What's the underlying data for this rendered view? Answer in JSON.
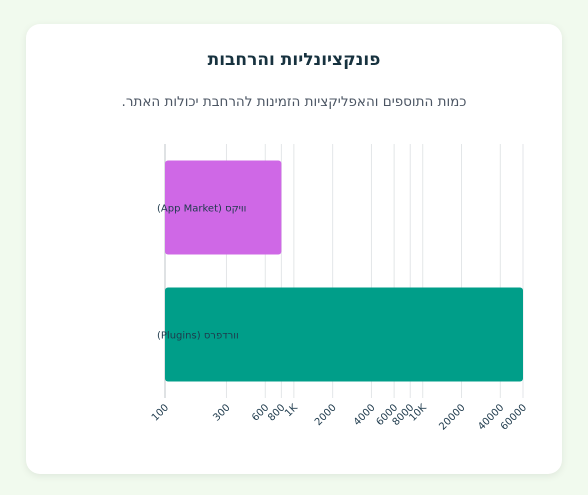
{
  "title": "פונקציונליות והרחבות",
  "subtitle": "כמות התוספים והאפליקציות הזמינות להרחבת יכולות האתר.",
  "chart_data": {
    "type": "bar",
    "orientation": "horizontal",
    "x_scale": "log",
    "xlim": [
      100,
      60000
    ],
    "categories": [
      "וויקס (App Market)",
      "וורדפרס (Plugins)"
    ],
    "values": [
      800,
      60000
    ],
    "colors": [
      "#cf68e6",
      "#009e89"
    ],
    "x_ticks": [
      {
        "value": 100,
        "label": "100"
      },
      {
        "value": 300,
        "label": "300"
      },
      {
        "value": 600,
        "label": "600"
      },
      {
        "value": 800,
        "label": "800"
      },
      {
        "value": 1000,
        "label": "1K"
      },
      {
        "value": 2000,
        "label": "2000"
      },
      {
        "value": 4000,
        "label": "4000"
      },
      {
        "value": 6000,
        "label": "6000"
      },
      {
        "value": 8000,
        "label": "8000"
      },
      {
        "value": 10000,
        "label": "10K"
      },
      {
        "value": 20000,
        "label": "20000"
      },
      {
        "value": 40000,
        "label": "40000"
      },
      {
        "value": 60000,
        "label": "60000"
      }
    ],
    "grid": true
  }
}
